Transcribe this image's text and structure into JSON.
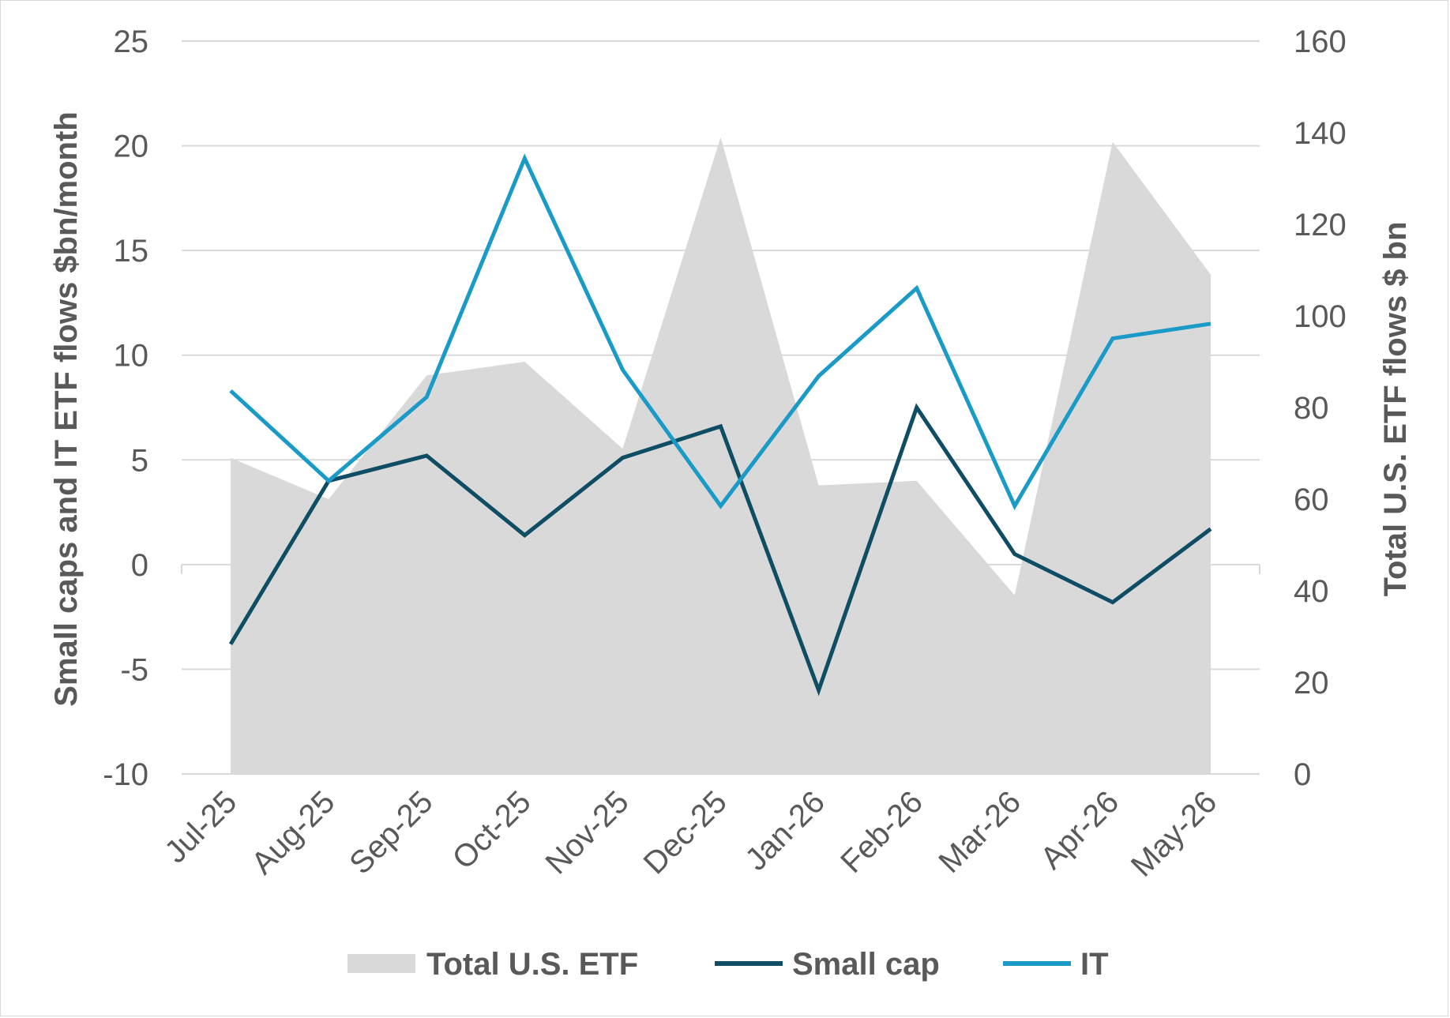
{
  "chart_data": {
    "type": "line",
    "categories": [
      "Jul-25",
      "Aug-25",
      "Sep-25",
      "Oct-25",
      "Nov-25",
      "Dec-25",
      "Jan-26",
      "Feb-26",
      "Mar-26",
      "Apr-26",
      "May-26"
    ],
    "series": [
      {
        "name": "Total U.S. ETF",
        "kind": "area",
        "axis": "right",
        "color": "#d9d9d9",
        "values": [
          69,
          60,
          87,
          90,
          71,
          139,
          63,
          64,
          39,
          138,
          109
        ]
      },
      {
        "name": "Small cap",
        "kind": "line",
        "axis": "left",
        "color": "#0e4d64",
        "values": [
          -3.8,
          4.0,
          5.2,
          1.4,
          5.1,
          6.6,
          -6.0,
          7.5,
          0.5,
          -1.8,
          1.7
        ]
      },
      {
        "name": "IT",
        "kind": "line",
        "axis": "left",
        "color": "#1a9ac6",
        "values": [
          8.3,
          4.0,
          8.0,
          19.4,
          9.3,
          2.8,
          9.0,
          13.2,
          2.8,
          10.8,
          11.5
        ]
      }
    ],
    "ylabel": "Small caps and IT ETF flows $bn/month",
    "y2label": "Total U.S. ETF flows $ bn",
    "ylim": [
      -10,
      25
    ],
    "y2lim": [
      0,
      160
    ],
    "yticks": [
      "25",
      "20",
      "15",
      "10",
      "5",
      "0",
      "-5",
      "-10"
    ],
    "y2ticks": [
      "160",
      "140",
      "120",
      "100",
      "80",
      "60",
      "40",
      "20",
      "0"
    ],
    "grid": "horizontal",
    "legend_position": "bottom",
    "legend": [
      "Total U.S. ETF",
      "Small cap",
      "IT"
    ]
  }
}
